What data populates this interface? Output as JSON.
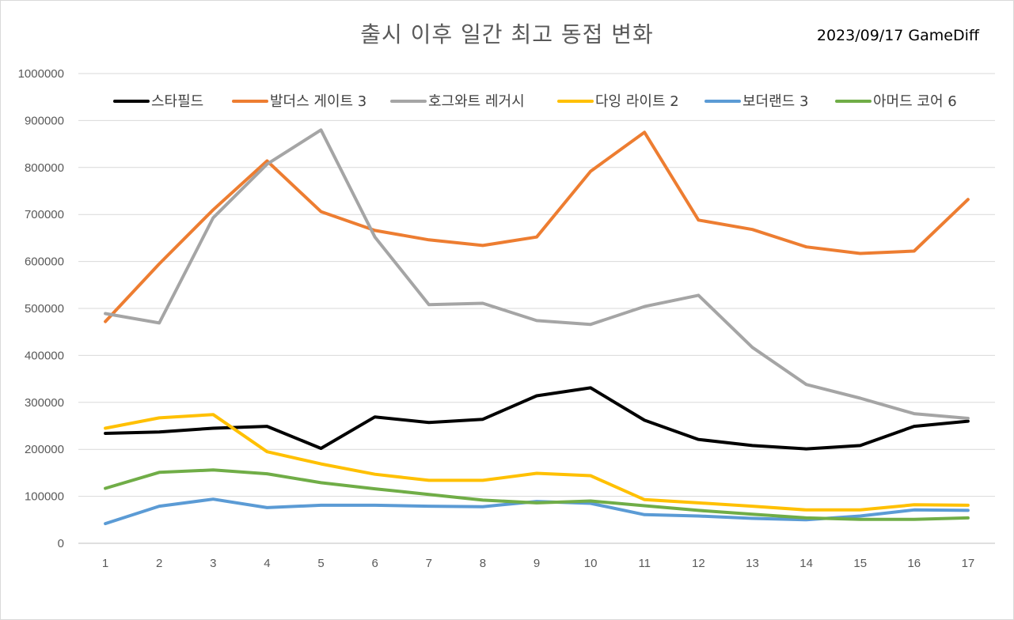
{
  "chart_data": {
    "type": "line",
    "title": "출시 이후 일간 최고 동접 변화",
    "annotation": "2023/09/17 GameDiff",
    "xlabel": "",
    "ylabel": "",
    "ylim": [
      0,
      1000000
    ],
    "y_ticks": [
      0,
      100000,
      200000,
      300000,
      400000,
      500000,
      600000,
      700000,
      800000,
      900000,
      1000000
    ],
    "x": [
      "1",
      "2",
      "3",
      "4",
      "5",
      "6",
      "7",
      "8",
      "9",
      "10",
      "11",
      "12",
      "13",
      "14",
      "15",
      "16",
      "17"
    ],
    "grid": true,
    "legend_position": "top",
    "series": [
      {
        "name": "스타필드",
        "color": "#000000",
        "values": [
          234000,
          237000,
          245000,
          249000,
          202000,
          269000,
          257000,
          264000,
          314000,
          331000,
          262000,
          221000,
          208000,
          201000,
          208000,
          249000,
          260000
        ]
      },
      {
        "name": "발더스 게이트 3",
        "color": "#ED7D31",
        "values": [
          472000,
          595000,
          710000,
          814000,
          706000,
          666000,
          646000,
          634000,
          652000,
          792000,
          875000,
          688000,
          668000,
          631000,
          617000,
          622000,
          732000
        ]
      },
      {
        "name": "호그와트 레거시",
        "color": "#A5A5A5",
        "values": [
          489000,
          469000,
          693000,
          807000,
          880000,
          652000,
          508000,
          511000,
          474000,
          466000,
          504000,
          528000,
          417000,
          338000,
          309000,
          276000,
          266000
        ]
      },
      {
        "name": "다잉 라이트 2",
        "color": "#FFC000",
        "values": [
          245000,
          267000,
          274000,
          195000,
          169000,
          147000,
          134000,
          134000,
          149000,
          144000,
          93000,
          86000,
          79000,
          71000,
          71000,
          82000,
          81000
        ]
      },
      {
        "name": "보더랜드 3",
        "color": "#5B9BD5",
        "values": [
          42000,
          79000,
          94000,
          76000,
          81000,
          81000,
          79000,
          78000,
          89000,
          85000,
          61000,
          58000,
          53000,
          50000,
          58000,
          71000,
          70000
        ]
      },
      {
        "name": "아머드 코어 6",
        "color": "#70AD47",
        "values": [
          117000,
          151000,
          156000,
          148000,
          129000,
          116000,
          104000,
          92000,
          86000,
          90000,
          80000,
          70000,
          62000,
          54000,
          51000,
          51000,
          54000
        ]
      }
    ]
  }
}
